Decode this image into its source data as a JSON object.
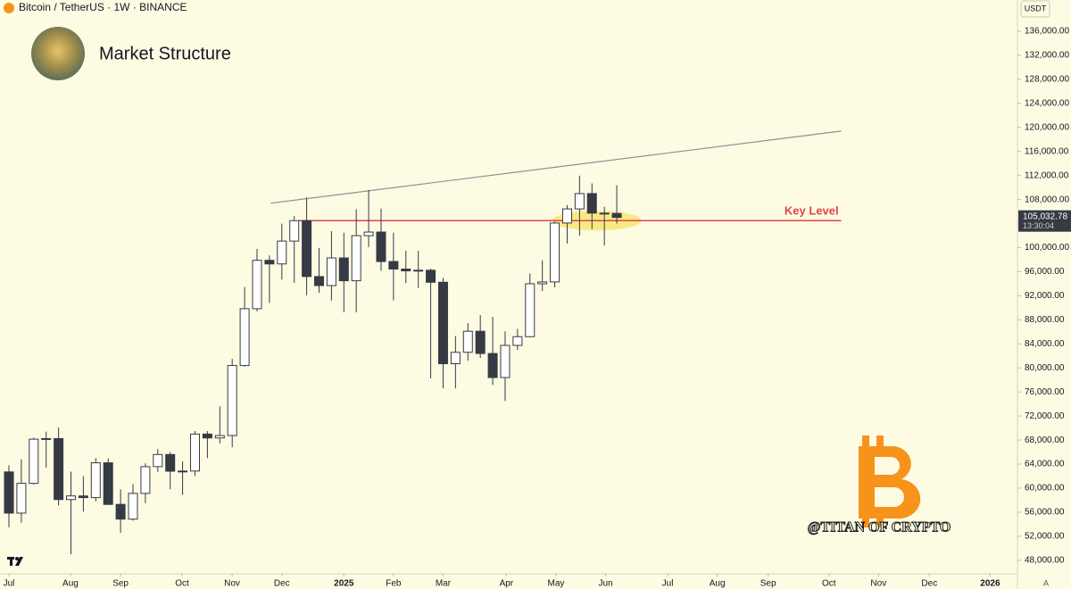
{
  "header": "Bitcoin / TetherUS · 1W · BINANCE",
  "chart_data": {
    "type": "candlestick",
    "title": "Market Structure",
    "currency": "USDT",
    "series": {
      "open": [
        62700,
        55850,
        60800,
        68150,
        68250,
        58110,
        58710,
        58430,
        64220,
        57300,
        54850,
        59130,
        63580,
        65600,
        62820,
        62850,
        69000,
        68350,
        68750,
        80400,
        89850,
        97900,
        97300,
        101100,
        104500,
        95200,
        93700,
        98300,
        94500,
        102000,
        102600,
        97700,
        96450,
        96150,
        96250,
        94250,
        80700,
        82600,
        86100,
        82400,
        78400,
        83750,
        85200,
        94000,
        94300,
        104100,
        106450,
        109000,
        105750,
        105700
      ],
      "high": [
        63800,
        64800,
        68400,
        69400,
        70080,
        62750,
        62000,
        65000,
        64960,
        59800,
        60670,
        64130,
        66500,
        66000,
        64450,
        69500,
        69500,
        73600,
        81500,
        93480,
        99800,
        98700,
        104000,
        105250,
        108350,
        99950,
        102750,
        102500,
        106400,
        109600,
        106500,
        102500,
        99500,
        99500,
        96500,
        95000,
        85300,
        87450,
        88800,
        88500,
        86100,
        86500,
        95700,
        97900,
        104350,
        107100,
        111980,
        110700,
        106800,
        110400
      ],
      "low": [
        53500,
        54260,
        60600,
        63400,
        57120,
        49000,
        56100,
        57800,
        57200,
        52550,
        54600,
        57500,
        62700,
        59830,
        58900,
        62000,
        65000,
        67450,
        66800,
        80200,
        89400,
        90800,
        94700,
        94150,
        92100,
        92500,
        91200,
        89250,
        89250,
        100100,
        96150,
        91250,
        94100,
        93300,
        78250,
        76600,
        76600,
        81200,
        81650,
        77150,
        74500,
        83000,
        85150,
        92800,
        93400,
        100700,
        102000,
        103100,
        100350,
        104000
      ],
      "close": [
        55850,
        60800,
        68150,
        68250,
        58110,
        58710,
        58430,
        64220,
        57300,
        54850,
        59130,
        63580,
        65600,
        62820,
        62850,
        69000,
        68350,
        68750,
        80400,
        89850,
        97900,
        97300,
        101100,
        104500,
        95200,
        93700,
        98300,
        94500,
        102000,
        102600,
        97700,
        96450,
        96150,
        96250,
        94250,
        80700,
        82600,
        86100,
        82400,
        78400,
        83750,
        85200,
        94000,
        94300,
        104100,
        106450,
        109000,
        105750,
        105700,
        105032.78
      ]
    },
    "last_price_label": "105,032.78",
    "countdown": "13:30:04",
    "up_color": "#ffffff",
    "down_color": "#363a45",
    "xlim": [
      -0.72,
      81.3
    ],
    "xticks": [
      {
        "value": 0,
        "label": "Jul"
      },
      {
        "value": 4.96,
        "label": "Aug"
      },
      {
        "value": 9,
        "label": "Sep"
      },
      {
        "value": 13.96,
        "label": "Oct"
      },
      {
        "value": 17.99,
        "label": "Nov"
      },
      {
        "value": 22,
        "label": "Dec"
      },
      {
        "value": 27,
        "label": "2025"
      },
      {
        "value": 31,
        "label": "Feb"
      },
      {
        "value": 35,
        "label": "Mar"
      },
      {
        "value": 40.1,
        "label": "Apr"
      },
      {
        "value": 44.1,
        "label": "May"
      },
      {
        "value": 48.1,
        "label": "Jun"
      },
      {
        "value": 53.1,
        "label": "Jul"
      },
      {
        "value": 57.1,
        "label": "Aug"
      },
      {
        "value": 61.2,
        "label": "Sep"
      },
      {
        "value": 66.1,
        "label": "Oct"
      },
      {
        "value": 70.1,
        "label": "Nov"
      },
      {
        "value": 74.2,
        "label": "Dec"
      },
      {
        "value": 79.1,
        "label": "2026"
      }
    ],
    "ylim": [
      45900,
      141200
    ],
    "yticks": [
      {
        "value": 48000,
        "label": "48,000.00"
      },
      {
        "value": 52000,
        "label": "52,000.00"
      },
      {
        "value": 56000,
        "label": "56,000.00"
      },
      {
        "value": 60000,
        "label": "60,000.00"
      },
      {
        "value": 64000,
        "label": "64,000.00"
      },
      {
        "value": 68000,
        "label": "68,000.00"
      },
      {
        "value": 72000,
        "label": "72,000.00"
      },
      {
        "value": 76000,
        "label": "76,000.00"
      },
      {
        "value": 80000,
        "label": "80,000.00"
      },
      {
        "value": 84000,
        "label": "84,000.00"
      },
      {
        "value": 88000,
        "label": "88,000.00"
      },
      {
        "value": 92000,
        "label": "92,000.00"
      },
      {
        "value": 96000,
        "label": "96,000.00"
      },
      {
        "value": 100000,
        "label": "100,000.00"
      },
      {
        "value": 104000,
        "label": "104,000.00"
      },
      {
        "value": 108000,
        "label": "108,000.00"
      },
      {
        "value": 112000,
        "label": "112,000.00"
      },
      {
        "value": 116000,
        "label": "116,000.00"
      },
      {
        "value": 120000,
        "label": "120,000.00"
      },
      {
        "value": 124000,
        "label": "124,000.00"
      },
      {
        "value": 128000,
        "label": "128,000.00"
      },
      {
        "value": 132000,
        "label": "132,000.00"
      },
      {
        "value": 136000,
        "label": "136,000.00"
      }
    ],
    "grid": false,
    "key_level": {
      "value": 104500,
      "label": "Key Level",
      "color": "#e0444c"
    },
    "trendline": {
      "x": [
        21.1,
        67.1
      ],
      "y": [
        107400,
        119400
      ],
      "color": "#8f8f8f"
    },
    "watermark": "@TITAN OF CRYPTO",
    "scale_mode": "A"
  }
}
